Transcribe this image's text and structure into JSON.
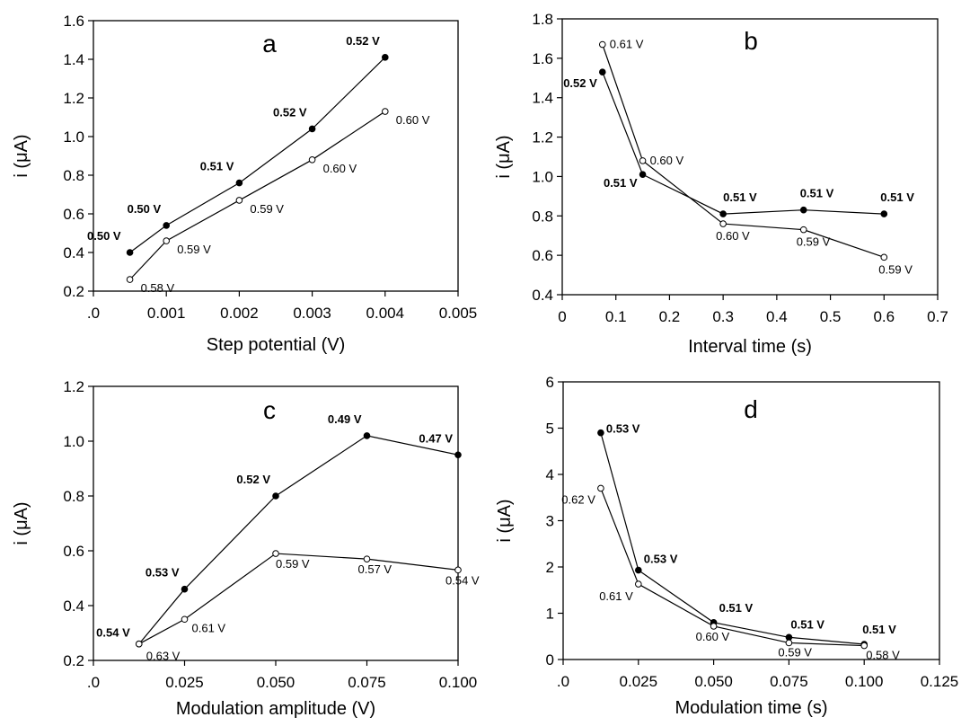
{
  "chart_data": [
    {
      "type": "line",
      "panel_letter": "a",
      "xlabel": "Step potential (V)",
      "ylabel": "i (μA)",
      "xlim": [
        0,
        0.005
      ],
      "ylim": [
        0.2,
        1.6
      ],
      "xticks": [
        ".0",
        "0.001",
        "0.002",
        "0.003",
        "0.004",
        "0.005"
      ],
      "yticks": [
        "0.2",
        "0.4",
        "0.6",
        "0.8",
        "1.0",
        "1.2",
        "1.4",
        "1.6"
      ],
      "series": [
        {
          "marker": "filled",
          "x": [
            0.0005,
            0.001,
            0.002,
            0.003,
            0.004
          ],
          "y": [
            0.4,
            0.54,
            0.76,
            1.04,
            1.41
          ],
          "labels": [
            "0.50 V",
            "0.50 V",
            "0.51 V",
            "0.52 V",
            "0.52 V"
          ]
        },
        {
          "marker": "open",
          "x": [
            0.0005,
            0.001,
            0.002,
            0.003,
            0.004
          ],
          "y": [
            0.26,
            0.46,
            0.67,
            0.88,
            1.13
          ],
          "labels": [
            "0.58 V",
            "0.59 V",
            "0.59 V",
            "0.60 V",
            "0.60 V"
          ]
        }
      ]
    },
    {
      "type": "line",
      "panel_letter": "b",
      "xlabel": "Interval time (s)",
      "ylabel": "i (μA)",
      "xlim": [
        0,
        0.7
      ],
      "ylim": [
        0.4,
        1.8
      ],
      "xticks": [
        "0",
        "0.1",
        "0.2",
        "0.3",
        "0.4",
        "0.5",
        "0.6",
        "0.7"
      ],
      "yticks": [
        "0.4",
        "0.6",
        "0.8",
        "1.0",
        "1.2",
        "1.4",
        "1.6",
        "1.8"
      ],
      "series": [
        {
          "marker": "filled",
          "x": [
            0.075,
            0.15,
            0.3,
            0.45,
            0.6
          ],
          "y": [
            1.53,
            1.01,
            0.81,
            0.83,
            0.81
          ],
          "labels": [
            "0.52 V",
            "0.51 V",
            "0.51 V",
            "0.51 V",
            "0.51 V"
          ]
        },
        {
          "marker": "open",
          "x": [
            0.075,
            0.15,
            0.3,
            0.45,
            0.6
          ],
          "y": [
            1.67,
            1.08,
            0.76,
            0.73,
            0.59
          ],
          "labels": [
            "0.61 V",
            "0.60 V",
            "0.60 V",
            "0.59 V",
            "0.59 V"
          ]
        }
      ]
    },
    {
      "type": "line",
      "panel_letter": "c",
      "xlabel": "Modulation amplitude (V)",
      "ylabel": "i (μA)",
      "xlim": [
        0,
        0.1
      ],
      "ylim": [
        0.2,
        1.2
      ],
      "xticks": [
        ".0",
        "0.025",
        "0.050",
        "0.075",
        "0.100"
      ],
      "yticks": [
        "0.2",
        "0.4",
        "0.6",
        "0.8",
        "1.0",
        "1.2"
      ],
      "series": [
        {
          "marker": "filled",
          "x": [
            0.0125,
            0.025,
            0.05,
            0.075,
            0.1
          ],
          "y": [
            0.26,
            0.46,
            0.8,
            1.02,
            0.95
          ],
          "labels": [
            "0.54 V",
            "0.53 V",
            "0.52 V",
            "0.49 V",
            "0.47 V"
          ]
        },
        {
          "marker": "open",
          "x": [
            0.0125,
            0.025,
            0.05,
            0.075,
            0.1
          ],
          "y": [
            0.26,
            0.35,
            0.59,
            0.57,
            0.53
          ],
          "labels": [
            "0.63 V",
            "0.61 V",
            "0.59 V",
            "0.57 V",
            "0.54 V"
          ]
        }
      ]
    },
    {
      "type": "line",
      "panel_letter": "d",
      "xlabel": "Modulation time (s)",
      "ylabel": "i (μA)",
      "xlim": [
        0,
        0.125
      ],
      "ylim": [
        0,
        6
      ],
      "xticks": [
        ".0",
        "0.025",
        "0.050",
        "0.075",
        "0.100",
        "0.125"
      ],
      "yticks": [
        "0",
        "1",
        "2",
        "3",
        "4",
        "5",
        "6"
      ],
      "series": [
        {
          "marker": "filled",
          "x": [
            0.0125,
            0.025,
            0.05,
            0.075,
            0.1
          ],
          "y": [
            4.9,
            1.93,
            0.8,
            0.48,
            0.33
          ],
          "labels": [
            "0.53 V",
            "0.53 V",
            "0.51 V",
            "0.51 V",
            "0.51 V"
          ]
        },
        {
          "marker": "open",
          "x": [
            0.0125,
            0.025,
            0.05,
            0.075,
            0.1
          ],
          "y": [
            3.7,
            1.63,
            0.72,
            0.36,
            0.3
          ],
          "labels": [
            "0.62 V",
            "0.61 V",
            "0.60 V",
            "0.59 V",
            "0.58 V"
          ]
        }
      ]
    }
  ]
}
